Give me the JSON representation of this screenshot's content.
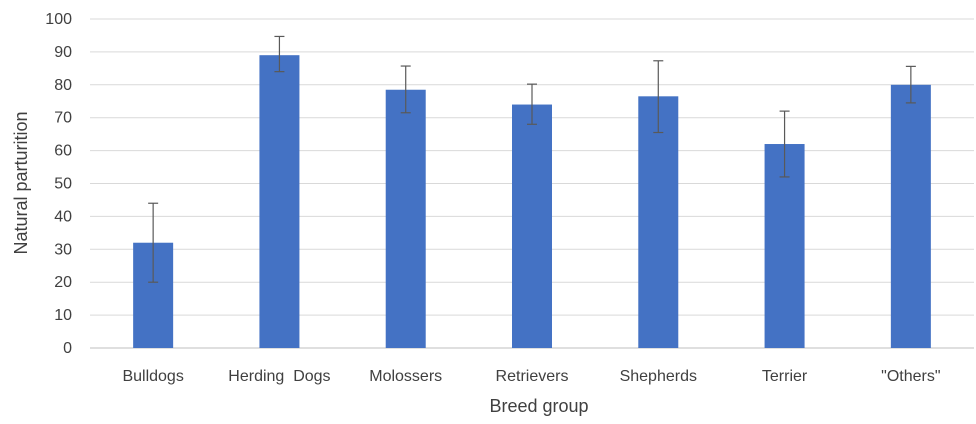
{
  "chart_data": {
    "type": "bar",
    "title": "",
    "xlabel": "Breed group",
    "ylabel": "Natural parturition",
    "ylim": [
      0,
      100
    ],
    "yticks": [
      0,
      10,
      20,
      30,
      40,
      50,
      60,
      70,
      80,
      90,
      100
    ],
    "grid": true,
    "legend": "none",
    "bar_color": "#4472C4",
    "categories": [
      "Bulldogs",
      "Herding  Dogs",
      "Molossers",
      "Retrievers",
      "Shepherds",
      "Terrier",
      "\"Others\""
    ],
    "values": [
      32,
      89,
      78.5,
      74,
      76.5,
      62,
      80
    ],
    "error_low": [
      20,
      84,
      71.5,
      68,
      65.5,
      52,
      74.5
    ],
    "error_high": [
      44,
      94.7,
      85.7,
      80.2,
      87.3,
      72,
      85.6
    ]
  }
}
